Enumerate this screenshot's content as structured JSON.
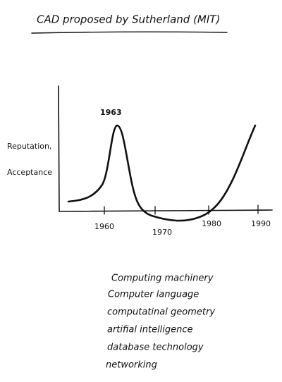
{
  "title": "CAD proposed by Sutherland (MIT)",
  "annotation": "1963",
  "y_label": [
    "Reputation,",
    "Acceptance"
  ],
  "x_labels": [
    "1960",
    "1970",
    "1980",
    "1990"
  ],
  "items": [
    "Computing machinery",
    "Computer language",
    "computatinal geometry",
    "artifial intelligence",
    "database technology",
    "networking"
  ]
}
